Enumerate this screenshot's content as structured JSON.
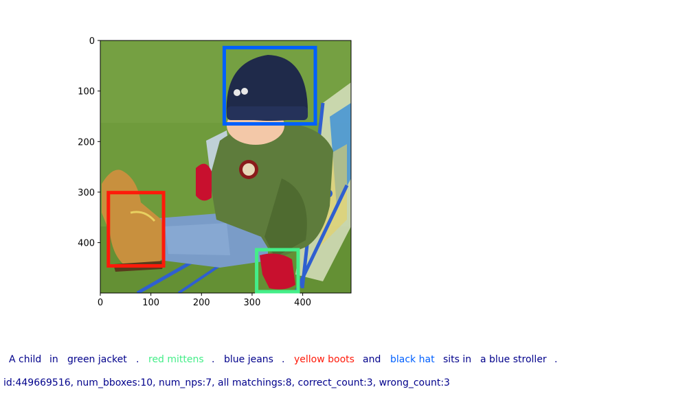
{
  "image": {
    "description_colors": {
      "grass": "#6e9a3a",
      "jacket": "#5c7a3a",
      "hat": "#1f2a4a",
      "jeans": "#7a9cc8",
      "boot": "#c89040",
      "mitten": "#c8102e",
      "stroller": "#2f5fd0"
    }
  },
  "axes": {
    "x_ticks": [
      "0",
      "100",
      "200",
      "300",
      "400"
    ],
    "y_ticks": [
      "0",
      "100",
      "200",
      "300",
      "400"
    ],
    "x_tick_values": [
      0,
      100,
      200,
      300,
      400
    ],
    "y_tick_values": [
      0,
      100,
      200,
      300,
      400
    ],
    "x_range": [
      0,
      500
    ],
    "y_range": [
      0,
      500
    ]
  },
  "boxes": [
    {
      "label": "black hat",
      "color": "#0060ff",
      "x0": 245,
      "y0": 14,
      "x1": 425,
      "y1": 165
    },
    {
      "label": "yellow boots",
      "color": "#ff1a0a",
      "x0": 16,
      "y0": 301,
      "x1": 125,
      "y1": 446
    },
    {
      "label": "red mittens",
      "color": "#44ee88",
      "x0": 309,
      "y0": 414,
      "x1": 391,
      "y1": 500
    }
  ],
  "caption": [
    {
      "text": "A child",
      "color": "#00008b"
    },
    {
      "text": "in",
      "color": "#00008b"
    },
    {
      "text": "green jacket",
      "color": "#00008b"
    },
    {
      "text": ".",
      "color": "#00008b"
    },
    {
      "text": "red mittens",
      "color": "#44ee88"
    },
    {
      "text": ".",
      "color": "#00008b"
    },
    {
      "text": "blue jeans",
      "color": "#00008b"
    },
    {
      "text": ".",
      "color": "#00008b"
    },
    {
      "text": "yellow boots",
      "color": "#ff1a0a"
    },
    {
      "text": "and",
      "color": "#00008b"
    },
    {
      "text": "black hat",
      "color": "#0060ff"
    },
    {
      "text": "sits in",
      "color": "#00008b"
    },
    {
      "text": "a blue stroller",
      "color": "#00008b"
    },
    {
      "text": ".",
      "color": "#00008b"
    }
  ],
  "stats": "id:449669516, num_bboxes:10, num_nps:7, all matchings:8, correct_count:3, wrong_count:3"
}
